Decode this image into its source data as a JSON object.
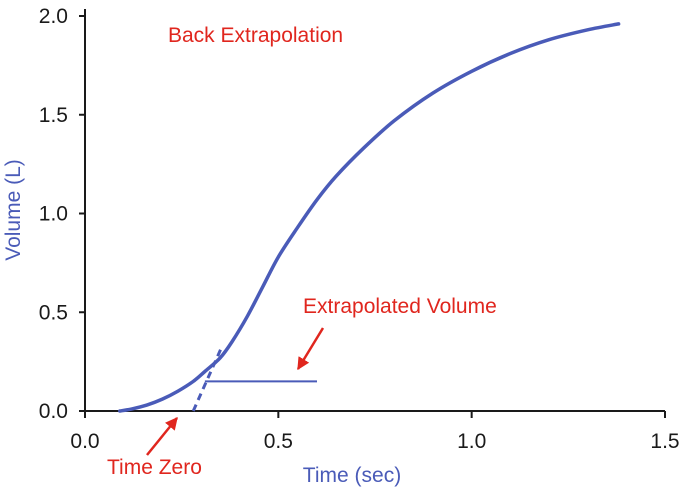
{
  "chart_data": {
    "type": "line",
    "title": "Back Extrapolation",
    "xlabel": "Time (sec)",
    "ylabel": "Volume (L)",
    "xlim": [
      0,
      1.5
    ],
    "ylim": [
      0,
      2.0
    ],
    "x_ticks": [
      {
        "value": 0,
        "label": "0.0"
      },
      {
        "value": 0.5,
        "label": "0.5"
      },
      {
        "value": 1.0,
        "label": "1.0"
      },
      {
        "value": 1.5,
        "label": "1.5"
      }
    ],
    "y_ticks": [
      {
        "value": 0,
        "label": "0.0"
      },
      {
        "value": 0.5,
        "label": "0.5"
      },
      {
        "value": 1.0,
        "label": "1.0"
      },
      {
        "value": 1.5,
        "label": "1.5"
      },
      {
        "value": 2.0,
        "label": "2.0"
      }
    ],
    "grid": false,
    "series": [
      {
        "style": "solid",
        "x": [
          0.09,
          0.12,
          0.16,
          0.2,
          0.24,
          0.28,
          0.31,
          0.35,
          0.38,
          0.42,
          0.46,
          0.5,
          0.55,
          0.6,
          0.65,
          0.72,
          0.8,
          0.9,
          1.0,
          1.1,
          1.2,
          1.3,
          1.38
        ],
        "y": [
          0.0,
          0.01,
          0.03,
          0.06,
          0.1,
          0.15,
          0.2,
          0.27,
          0.35,
          0.48,
          0.63,
          0.78,
          0.93,
          1.07,
          1.19,
          1.33,
          1.47,
          1.61,
          1.72,
          1.81,
          1.88,
          1.93,
          1.96
        ]
      },
      {
        "style": "dashed",
        "x": [
          0.28,
          0.355
        ],
        "y": [
          0.0,
          0.33
        ]
      }
    ],
    "reference_lines": [
      {
        "x": [
          0.31,
          0.6
        ],
        "y": [
          0.15,
          0.15
        ]
      }
    ],
    "annotations": [
      {
        "text": "Back Extrapolation"
      },
      {
        "text": "Extrapolated Volume",
        "arrow_to": {
          "x": 0.6,
          "y": 0.15
        }
      },
      {
        "text": "Time Zero",
        "arrow_to": {
          "x": 0.28,
          "y": 0.0
        }
      }
    ],
    "colors": {
      "curve": "#4a5bb8",
      "annotation": "#e0261e",
      "axis": "#1a1a1a",
      "axis_title": "#4a5bb8"
    }
  }
}
